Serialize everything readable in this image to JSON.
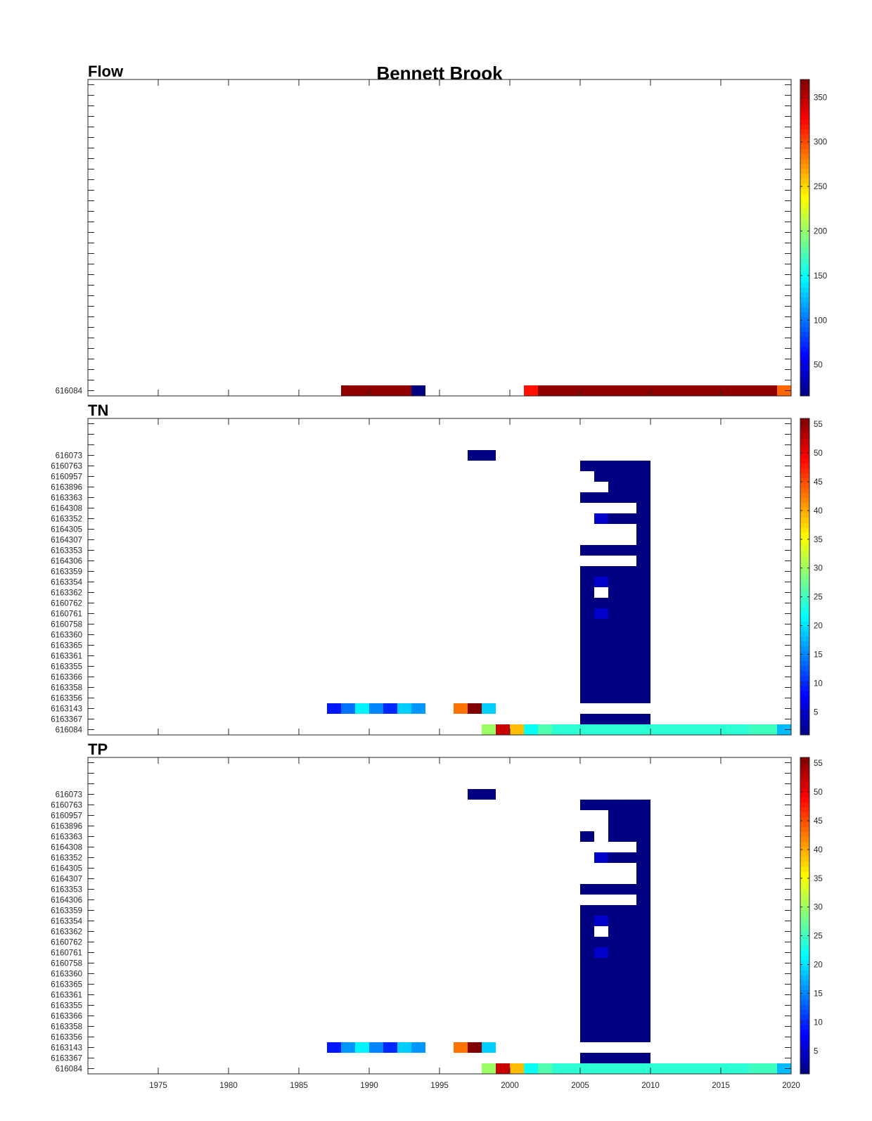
{
  "figure_title": "Bennett Brook",
  "colormap": "jet",
  "x_axis": {
    "min": 1970,
    "max": 2020,
    "tick_labels": [
      "1975",
      "1980",
      "1985",
      "1990",
      "1995",
      "2000",
      "2005",
      "2010",
      "2015",
      "2020"
    ]
  },
  "chart_data": [
    {
      "type": "heatmap",
      "title": "Flow",
      "y_categories": [
        "616084"
      ],
      "n_rows": 30,
      "colorbar": {
        "min": 15,
        "max": 370,
        "ticks": [
          "50",
          "100",
          "150",
          "200",
          "250",
          "300",
          "350"
        ]
      },
      "cells": [
        {
          "row": "616084",
          "from": 1988,
          "to": 1993,
          "value": 365
        },
        {
          "row": "616084",
          "from": 1993,
          "to": 1994,
          "value": 15
        },
        {
          "row": "616084",
          "from": 2001,
          "to": 2002,
          "value": 320
        },
        {
          "row": "616084",
          "from": 2002,
          "to": 2019,
          "value": 365
        },
        {
          "row": "616084",
          "from": 2019,
          "to": 2020,
          "value": 290
        }
      ]
    },
    {
      "type": "heatmap",
      "title": "TN",
      "y_categories": [
        "616084",
        "6163367",
        "6163143",
        "6163356",
        "6163358",
        "6163366",
        "6163355",
        "6163361",
        "6163365",
        "6163360",
        "6160758",
        "6160761",
        "6160762",
        "6163362",
        "6163354",
        "6163359",
        "6164306",
        "6163353",
        "6164307",
        "6164305",
        "6163352",
        "6164308",
        "6163363",
        "6163896",
        "6160957",
        "6160763",
        "616073"
      ],
      "n_rows": 30,
      "colorbar": {
        "min": 1,
        "max": 56,
        "ticks": [
          "5",
          "10",
          "15",
          "20",
          "25",
          "30",
          "35",
          "40",
          "45",
          "50",
          "55"
        ]
      },
      "cells": [
        {
          "row": "616073",
          "from": 1997,
          "to": 1999,
          "value": 1
        },
        {
          "row": "6160763",
          "from": 2005,
          "to": 2010,
          "value": 1
        },
        {
          "row": "6160957",
          "from": 2006,
          "to": 2010,
          "value": 1
        },
        {
          "row": "6163896",
          "from": 2007,
          "to": 2010,
          "value": 1
        },
        {
          "row": "6163363",
          "from": 2005,
          "to": 2010,
          "value": 1
        },
        {
          "row": "6164308",
          "from": 2009,
          "to": 2010,
          "value": 1
        },
        {
          "row": "6163352",
          "from": 2006,
          "to": 2007,
          "value": 5
        },
        {
          "row": "6163352",
          "from": 2007,
          "to": 2010,
          "value": 1
        },
        {
          "row": "6164305",
          "from": 2009,
          "to": 2010,
          "value": 1
        },
        {
          "row": "6164307",
          "from": 2009,
          "to": 2010,
          "value": 1
        },
        {
          "row": "6163353",
          "from": 2005,
          "to": 2010,
          "value": 1
        },
        {
          "row": "6164306",
          "from": 2009,
          "to": 2010,
          "value": 1
        },
        {
          "row": "6163359",
          "from": 2005,
          "to": 2010,
          "value": 1
        },
        {
          "row": "6163354",
          "from": 2005,
          "to": 2006,
          "value": 1
        },
        {
          "row": "6163354",
          "from": 2006,
          "to": 2007,
          "value": 5
        },
        {
          "row": "6163354",
          "from": 2007,
          "to": 2010,
          "value": 1
        },
        {
          "row": "6163362",
          "from": 2005,
          "to": 2006,
          "value": 1
        },
        {
          "row": "6163362",
          "from": 2007,
          "to": 2010,
          "value": 1
        },
        {
          "row": "6160762",
          "from": 2005,
          "to": 2010,
          "value": 1
        },
        {
          "row": "6160761",
          "from": 2005,
          "to": 2006,
          "value": 1
        },
        {
          "row": "6160761",
          "from": 2006,
          "to": 2007,
          "value": 5
        },
        {
          "row": "6160761",
          "from": 2007,
          "to": 2010,
          "value": 1
        },
        {
          "row": "6160758",
          "from": 2005,
          "to": 2010,
          "value": 1
        },
        {
          "row": "6163360",
          "from": 2005,
          "to": 2010,
          "value": 1
        },
        {
          "row": "6163365",
          "from": 2005,
          "to": 2010,
          "value": 1
        },
        {
          "row": "6163361",
          "from": 2005,
          "to": 2010,
          "value": 1
        },
        {
          "row": "6163355",
          "from": 2005,
          "to": 2010,
          "value": 1
        },
        {
          "row": "6163366",
          "from": 2005,
          "to": 2010,
          "value": 1
        },
        {
          "row": "6163358",
          "from": 2005,
          "to": 2010,
          "value": 1
        },
        {
          "row": "6163356",
          "from": 2005,
          "to": 2010,
          "value": 1
        },
        {
          "row": "6163143",
          "from": 1987,
          "to": 1988,
          "value": 9
        },
        {
          "row": "6163143",
          "from": 1988,
          "to": 1989,
          "value": 14
        },
        {
          "row": "6163143",
          "from": 1989,
          "to": 1990,
          "value": 21
        },
        {
          "row": "6163143",
          "from": 1990,
          "to": 1991,
          "value": 15
        },
        {
          "row": "6163143",
          "from": 1991,
          "to": 1992,
          "value": 10
        },
        {
          "row": "6163143",
          "from": 1992,
          "to": 1993,
          "value": 19
        },
        {
          "row": "6163143",
          "from": 1993,
          "to": 1994,
          "value": 16
        },
        {
          "row": "6163143",
          "from": 1996,
          "to": 1997,
          "value": 43
        },
        {
          "row": "6163143",
          "from": 1997,
          "to": 1998,
          "value": 56
        },
        {
          "row": "6163143",
          "from": 1998,
          "to": 1999,
          "value": 19
        },
        {
          "row": "6163367",
          "from": 2005,
          "to": 2010,
          "value": 1
        },
        {
          "row": "616084",
          "from": 1998,
          "to": 1999,
          "value": 30
        },
        {
          "row": "616084",
          "from": 1999,
          "to": 2000,
          "value": 52
        },
        {
          "row": "616084",
          "from": 2000,
          "to": 2001,
          "value": 39
        },
        {
          "row": "616084",
          "from": 2001,
          "to": 2002,
          "value": 22
        },
        {
          "row": "616084",
          "from": 2002,
          "to": 2003,
          "value": 26
        },
        {
          "row": "616084",
          "from": 2003,
          "to": 2017,
          "value": 24
        },
        {
          "row": "616084",
          "from": 2017,
          "to": 2019,
          "value": 25
        },
        {
          "row": "616084",
          "from": 2019,
          "to": 2020,
          "value": 18
        }
      ]
    },
    {
      "type": "heatmap",
      "title": "TP",
      "y_categories": [
        "616084",
        "6163367",
        "6163143",
        "6163356",
        "6163358",
        "6163366",
        "6163355",
        "6163361",
        "6163365",
        "6163360",
        "6160758",
        "6160761",
        "6160762",
        "6163362",
        "6163354",
        "6163359",
        "6164306",
        "6163353",
        "6164307",
        "6164305",
        "6163352",
        "6164308",
        "6163363",
        "6163896",
        "6160957",
        "6160763",
        "616073"
      ],
      "n_rows": 30,
      "colorbar": {
        "min": 1,
        "max": 56,
        "ticks": [
          "5",
          "10",
          "15",
          "20",
          "25",
          "30",
          "35",
          "40",
          "45",
          "50",
          "55"
        ]
      },
      "cells": [
        {
          "row": "616073",
          "from": 1997,
          "to": 1999,
          "value": 1
        },
        {
          "row": "6160763",
          "from": 2005,
          "to": 2010,
          "value": 1
        },
        {
          "row": "6160957",
          "from": 2007,
          "to": 2010,
          "value": 1
        },
        {
          "row": "6163896",
          "from": 2007,
          "to": 2010,
          "value": 1
        },
        {
          "row": "6163363",
          "from": 2005,
          "to": 2006,
          "value": 1
        },
        {
          "row": "6163363",
          "from": 2007,
          "to": 2010,
          "value": 1
        },
        {
          "row": "6164308",
          "from": 2009,
          "to": 2010,
          "value": 1
        },
        {
          "row": "6163352",
          "from": 2006,
          "to": 2007,
          "value": 5
        },
        {
          "row": "6163352",
          "from": 2007,
          "to": 2010,
          "value": 1
        },
        {
          "row": "6164305",
          "from": 2009,
          "to": 2010,
          "value": 1
        },
        {
          "row": "6164307",
          "from": 2009,
          "to": 2010,
          "value": 1
        },
        {
          "row": "6163353",
          "from": 2005,
          "to": 2010,
          "value": 1
        },
        {
          "row": "6164306",
          "from": 2009,
          "to": 2010,
          "value": 1
        },
        {
          "row": "6163359",
          "from": 2005,
          "to": 2010,
          "value": 1
        },
        {
          "row": "6163354",
          "from": 2005,
          "to": 2006,
          "value": 1
        },
        {
          "row": "6163354",
          "from": 2006,
          "to": 2007,
          "value": 5
        },
        {
          "row": "6163354",
          "from": 2007,
          "to": 2010,
          "value": 1
        },
        {
          "row": "6163362",
          "from": 2005,
          "to": 2006,
          "value": 1
        },
        {
          "row": "6163362",
          "from": 2007,
          "to": 2010,
          "value": 1
        },
        {
          "row": "6160762",
          "from": 2005,
          "to": 2010,
          "value": 1
        },
        {
          "row": "6160761",
          "from": 2005,
          "to": 2006,
          "value": 1
        },
        {
          "row": "6160761",
          "from": 2006,
          "to": 2007,
          "value": 5
        },
        {
          "row": "6160761",
          "from": 2007,
          "to": 2010,
          "value": 1
        },
        {
          "row": "6160758",
          "from": 2005,
          "to": 2010,
          "value": 1
        },
        {
          "row": "6163360",
          "from": 2005,
          "to": 2010,
          "value": 1
        },
        {
          "row": "6163365",
          "from": 2005,
          "to": 2010,
          "value": 1
        },
        {
          "row": "6163361",
          "from": 2005,
          "to": 2010,
          "value": 1
        },
        {
          "row": "6163355",
          "from": 2005,
          "to": 2010,
          "value": 1
        },
        {
          "row": "6163366",
          "from": 2005,
          "to": 2010,
          "value": 1
        },
        {
          "row": "6163358",
          "from": 2005,
          "to": 2010,
          "value": 1
        },
        {
          "row": "6163356",
          "from": 2005,
          "to": 2010,
          "value": 1
        },
        {
          "row": "6163143",
          "from": 1987,
          "to": 1988,
          "value": 9
        },
        {
          "row": "6163143",
          "from": 1988,
          "to": 1989,
          "value": 16
        },
        {
          "row": "6163143",
          "from": 1989,
          "to": 1990,
          "value": 21
        },
        {
          "row": "6163143",
          "from": 1990,
          "to": 1991,
          "value": 15
        },
        {
          "row": "6163143",
          "from": 1991,
          "to": 1992,
          "value": 10
        },
        {
          "row": "6163143",
          "from": 1992,
          "to": 1993,
          "value": 19
        },
        {
          "row": "6163143",
          "from": 1993,
          "to": 1994,
          "value": 16
        },
        {
          "row": "6163143",
          "from": 1996,
          "to": 1997,
          "value": 43
        },
        {
          "row": "6163143",
          "from": 1997,
          "to": 1998,
          "value": 56
        },
        {
          "row": "6163143",
          "from": 1998,
          "to": 1999,
          "value": 19
        },
        {
          "row": "6163367",
          "from": 2005,
          "to": 2010,
          "value": 1
        },
        {
          "row": "616084",
          "from": 1998,
          "to": 1999,
          "value": 30
        },
        {
          "row": "616084",
          "from": 1999,
          "to": 2000,
          "value": 52
        },
        {
          "row": "616084",
          "from": 2000,
          "to": 2001,
          "value": 39
        },
        {
          "row": "616084",
          "from": 2001,
          "to": 2002,
          "value": 22
        },
        {
          "row": "616084",
          "from": 2002,
          "to": 2003,
          "value": 26
        },
        {
          "row": "616084",
          "from": 2003,
          "to": 2017,
          "value": 24
        },
        {
          "row": "616084",
          "from": 2017,
          "to": 2019,
          "value": 25
        },
        {
          "row": "616084",
          "from": 2019,
          "to": 2020,
          "value": 18
        }
      ]
    }
  ]
}
